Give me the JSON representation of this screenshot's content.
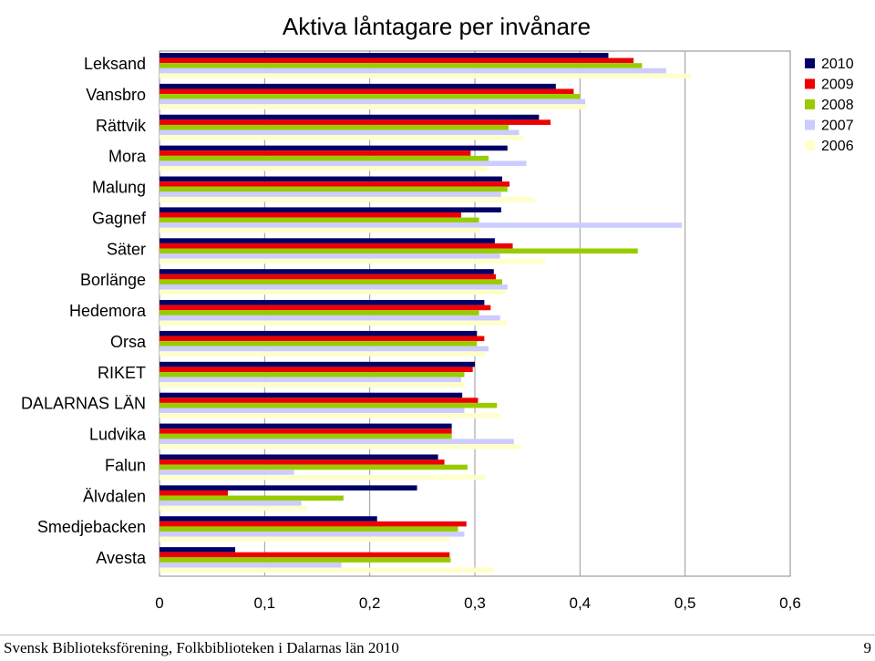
{
  "chart_data": {
    "type": "bar",
    "orientation": "horizontal",
    "title": "Aktiva låntagare per invånare",
    "categories": [
      "Leksand",
      "Vansbro",
      "Rättvik",
      "Mora",
      "Malung",
      "Gagnef",
      "Säter",
      "Borlänge",
      "Hedemora",
      "Orsa",
      "RIKET",
      "DALARNAS LÄN",
      "Ludvika",
      "Falun",
      "Älvdalen",
      "Smedjebacken",
      "Avesta"
    ],
    "series": [
      {
        "name": "2010",
        "color": "#000066",
        "values": [
          0.427,
          0.377,
          0.361,
          0.331,
          0.326,
          0.325,
          0.319,
          0.318,
          0.309,
          0.302,
          0.3,
          0.288,
          0.278,
          0.265,
          0.245,
          0.207,
          0.072
        ]
      },
      {
        "name": "2009",
        "color": "#ee0000",
        "values": [
          0.451,
          0.394,
          0.372,
          0.296,
          0.333,
          0.287,
          0.336,
          0.32,
          0.315,
          0.309,
          0.298,
          0.303,
          0.278,
          0.271,
          0.065,
          0.292,
          0.276
        ]
      },
      {
        "name": "2008",
        "color": "#99cc00",
        "values": [
          0.459,
          0.4,
          0.332,
          0.313,
          0.331,
          0.304,
          0.455,
          0.326,
          0.304,
          0.302,
          0.29,
          0.321,
          0.278,
          0.293,
          0.175,
          0.284,
          0.277
        ]
      },
      {
        "name": "2007",
        "color": "#ccccff",
        "values": [
          0.482,
          0.405,
          0.342,
          0.349,
          0.325,
          0.497,
          0.324,
          0.331,
          0.324,
          0.313,
          0.287,
          0.29,
          0.337,
          0.128,
          0.135,
          0.29,
          0.173
        ]
      },
      {
        "name": "2006",
        "color": "#ffffcc",
        "values": [
          0.505,
          0.406,
          0.346,
          0.312,
          0.357,
          0.305,
          0.367,
          0.33,
          0.33,
          0.31,
          0.29,
          0.324,
          0.343,
          0.31,
          0.14,
          0.276,
          0.318
        ]
      }
    ],
    "xlim": [
      0,
      0.6
    ],
    "xticks": [
      "0",
      "0,1",
      "0,2",
      "0,3",
      "0,4",
      "0,5",
      "0,6"
    ],
    "xtick_values": [
      0,
      0.1,
      0.2,
      0.3,
      0.4,
      0.5,
      0.6
    ],
    "grid": "vertical",
    "legend_position": "top-right"
  },
  "footer": {
    "left": "Svensk Biblioteksförening, Folkbiblioteken i Dalarnas län 2010",
    "right": "9"
  }
}
